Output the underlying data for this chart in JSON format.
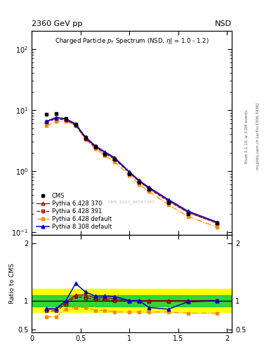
{
  "pt_values": [
    0.15,
    0.25,
    0.35,
    0.45,
    0.55,
    0.65,
    0.75,
    0.85,
    1.0,
    1.1,
    1.2,
    1.4,
    1.6,
    1.9
  ],
  "cms_data": [
    8.5,
    8.8,
    7.2,
    5.8,
    3.5,
    2.5,
    1.9,
    1.55,
    0.9,
    0.65,
    0.5,
    0.3,
    0.2,
    0.14
  ],
  "cms_color": "#000000",
  "cms_label": "CMS",
  "py6_370_data": [
    6.5,
    7.5,
    7.0,
    5.7,
    3.5,
    2.5,
    2.0,
    1.6,
    0.95,
    0.68,
    0.52,
    0.33,
    0.21,
    0.14
  ],
  "py6_370_color": "#aa0000",
  "py6_370_label": "Pythia 6.428 370",
  "py6_391_data": [
    6.3,
    7.2,
    6.8,
    5.6,
    3.4,
    2.45,
    1.95,
    1.55,
    0.93,
    0.67,
    0.51,
    0.32,
    0.21,
    0.14
  ],
  "py6_391_color": "#880000",
  "py6_391_label": "Pythia 6.428 391",
  "py6_def_data": [
    5.5,
    6.5,
    6.5,
    5.5,
    3.3,
    2.3,
    1.8,
    1.4,
    0.85,
    0.6,
    0.46,
    0.28,
    0.18,
    0.12
  ],
  "py6_def_color": "#ff8800",
  "py6_def_label": "Pythia 6.428 default",
  "py8_def_data": [
    6.5,
    7.5,
    7.2,
    5.9,
    3.6,
    2.6,
    2.05,
    1.65,
    0.97,
    0.7,
    0.54,
    0.34,
    0.22,
    0.145
  ],
  "py8_def_color": "#0000cc",
  "py8_def_label": "Pythia 8.308 default",
  "ratio_py6_370": [
    0.85,
    0.85,
    0.97,
    1.1,
    1.1,
    1.05,
    1.05,
    1.03,
    1.0,
    1.0,
    1.0,
    1.0,
    1.0,
    1.0
  ],
  "ratio_py6_391": [
    0.82,
    0.82,
    0.94,
    1.07,
    1.05,
    1.02,
    1.02,
    1.0,
    0.99,
    0.99,
    0.99,
    0.99,
    0.99,
    1.0
  ],
  "ratio_py6_def": [
    0.72,
    0.72,
    0.85,
    0.88,
    0.88,
    0.83,
    0.83,
    0.8,
    0.8,
    0.8,
    0.8,
    0.8,
    0.78,
    0.78
  ],
  "ratio_py8_def": [
    0.86,
    0.86,
    1.0,
    1.3,
    1.15,
    1.08,
    1.08,
    1.07,
    1.0,
    1.0,
    0.88,
    0.85,
    0.98,
    1.0
  ],
  "green_band_lo": 0.9,
  "green_band_hi": 1.1,
  "yellow_band_lo": 0.8,
  "yellow_band_hi": 1.2,
  "ylim_main": [
    0.09,
    200
  ],
  "ylim_ratio": [
    0.45,
    2.15
  ],
  "xlim": [
    0.0,
    2.05
  ],
  "top_left_text": "2360 GeV pp",
  "top_right_text": "NSD",
  "plot_title": "Charged Particle p",
  "watermark": "CMS_2010_S8547297",
  "right_text1": "Rivet 3.1.10, ≥ 3.2M events",
  "right_text2": "mcplots.cern.ch [arXiv:1306.3436]",
  "ratio_ylabel": "Ratio to CMS",
  "xlabel": ""
}
